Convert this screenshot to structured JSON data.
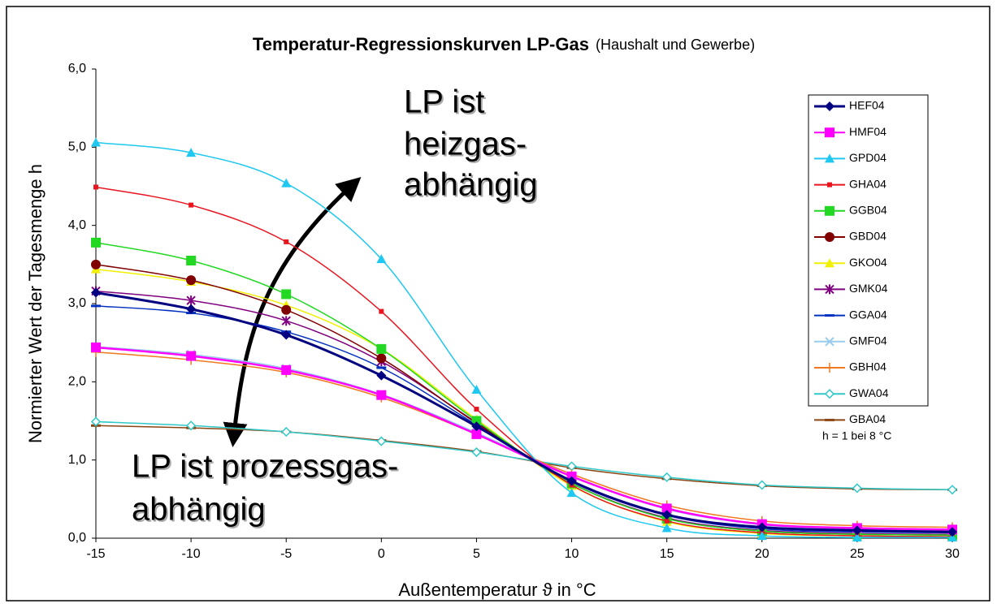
{
  "chart_data": {
    "type": "line",
    "title": "Temperatur-Regressionskurven LP-Gas",
    "subtitle": "(Haushalt und Gewerbe)",
    "xlabel": "Außentemperatur ϑ in °C",
    "ylabel": "Normierter Wert der Tagesmenge h",
    "x": [
      -15,
      -10,
      -5,
      0,
      5,
      10,
      15,
      20,
      25,
      30
    ],
    "xlim": [
      -15,
      30
    ],
    "xticks": [
      -15,
      -10,
      -5,
      0,
      5,
      10,
      15,
      20,
      25,
      30
    ],
    "ylim": [
      0,
      6
    ],
    "yticks": [
      {
        "value": 0,
        "label": "0,0"
      },
      {
        "value": 1,
        "label": "1,0"
      },
      {
        "value": 2,
        "label": "2,0"
      },
      {
        "value": 3,
        "label": "3,0"
      },
      {
        "value": 4,
        "label": "4,0"
      },
      {
        "value": 5,
        "label": "5,0"
      },
      {
        "value": 6,
        "label": "6,0"
      }
    ],
    "legend": "upper right",
    "annotations": [
      {
        "lines": [
          "LP ist",
          "heizgas-",
          "abhängig"
        ]
      },
      {
        "lines": [
          "LP ist prozessgas-",
          "abhängig"
        ]
      },
      {
        "lines": [
          "h = 1 bei 8 °C"
        ]
      }
    ],
    "series": [
      {
        "name": "HEF04",
        "color": "#000080",
        "marker": "diamond",
        "values": [
          3.14,
          2.93,
          2.6,
          2.08,
          1.43,
          0.73,
          0.3,
          0.14,
          0.1,
          0.08
        ]
      },
      {
        "name": "HMF04",
        "color": "#ff00ff",
        "marker": "square",
        "values": [
          2.44,
          2.33,
          2.15,
          1.83,
          1.33,
          0.79,
          0.38,
          0.18,
          0.13,
          0.11
        ]
      },
      {
        "name": "GPD04",
        "color": "#1ec8f0",
        "marker": "triangle",
        "values": [
          5.06,
          4.93,
          4.54,
          3.57,
          1.9,
          0.58,
          0.13,
          0.03,
          0.01,
          0.01
        ]
      },
      {
        "name": "GHA04",
        "color": "#e8141e",
        "marker": "smallsquare",
        "values": [
          4.49,
          4.26,
          3.79,
          2.9,
          1.65,
          0.68,
          0.22,
          0.07,
          0.03,
          0.02
        ]
      },
      {
        "name": "GGB04",
        "color": "#22d822",
        "marker": "square",
        "values": [
          3.78,
          3.55,
          3.12,
          2.42,
          1.5,
          0.7,
          0.25,
          0.09,
          0.05,
          0.04
        ]
      },
      {
        "name": "GBD04",
        "color": "#800000",
        "marker": "circle",
        "values": [
          3.5,
          3.3,
          2.92,
          2.3,
          1.47,
          0.7,
          0.25,
          0.09,
          0.05,
          0.04
        ]
      },
      {
        "name": "GKO04",
        "color": "#f0f000",
        "marker": "triangle",
        "values": [
          3.44,
          3.28,
          2.98,
          2.42,
          1.52,
          0.67,
          0.21,
          0.06,
          0.03,
          0.02
        ]
      },
      {
        "name": "GMK04",
        "color": "#800080",
        "marker": "star",
        "values": [
          3.16,
          3.04,
          2.78,
          2.26,
          1.48,
          0.7,
          0.26,
          0.1,
          0.06,
          0.05
        ]
      },
      {
        "name": "GGA04",
        "color": "#0030c0",
        "marker": "dash",
        "values": [
          2.97,
          2.88,
          2.64,
          2.18,
          1.45,
          0.72,
          0.29,
          0.12,
          0.08,
          0.07
        ]
      },
      {
        "name": "GMF04",
        "color": "#99ccee",
        "marker": "cross",
        "values": [
          2.45,
          2.35,
          2.17,
          1.84,
          1.35,
          0.79,
          0.37,
          0.17,
          0.12,
          0.1
        ]
      },
      {
        "name": "GBH04",
        "color": "#f07820",
        "marker": "plus",
        "values": [
          2.38,
          2.28,
          2.12,
          1.8,
          1.33,
          0.82,
          0.42,
          0.22,
          0.16,
          0.14
        ]
      },
      {
        "name": "GWA04",
        "color": "#30c8c8",
        "marker": "opendiamond",
        "values": [
          1.49,
          1.44,
          1.36,
          1.24,
          1.1,
          0.92,
          0.78,
          0.68,
          0.64,
          0.62
        ]
      },
      {
        "name": "GBA04",
        "color": "#8b4513",
        "marker": "dash",
        "values": [
          1.44,
          1.41,
          1.36,
          1.25,
          1.11,
          0.9,
          0.76,
          0.67,
          0.63,
          0.62
        ]
      }
    ]
  }
}
